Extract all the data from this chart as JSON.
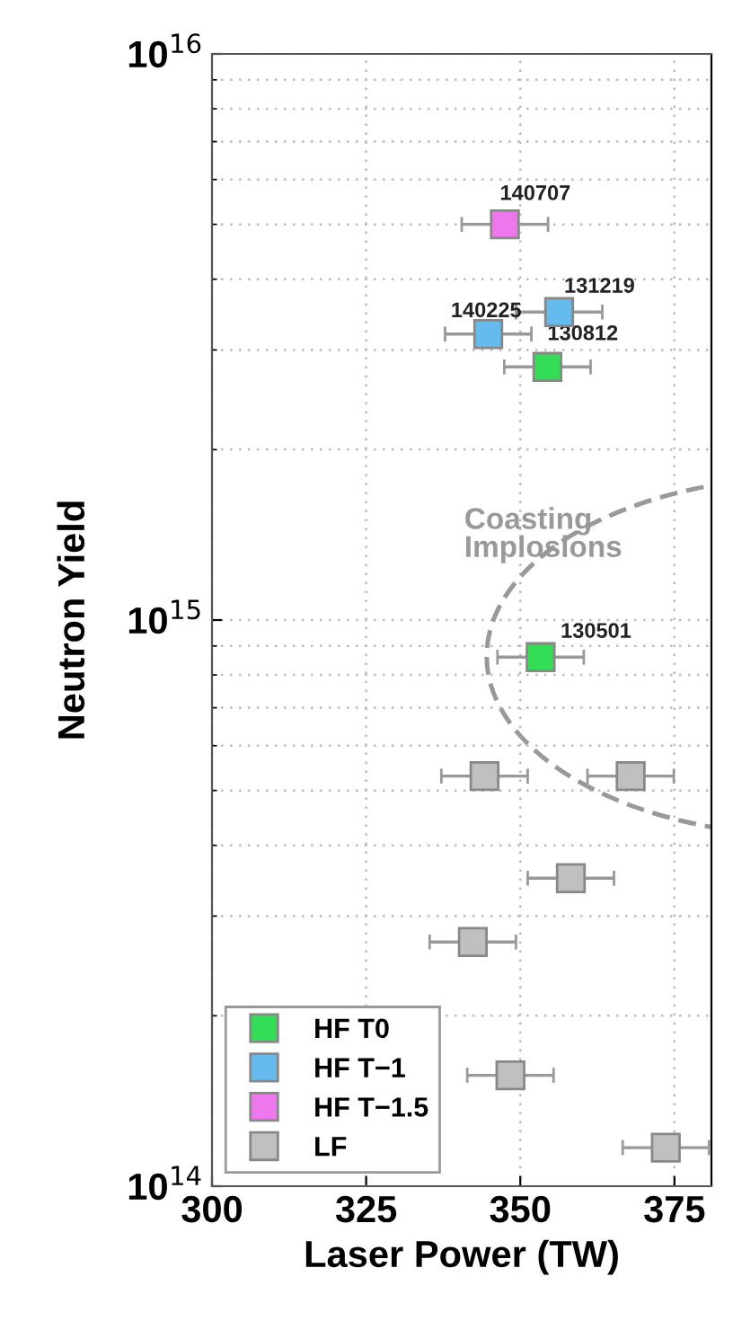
{
  "chart_data": {
    "type": "scatter",
    "xlabel": "Laser Power (TW)",
    "ylabel": "Neutron Yield",
    "log": "y",
    "grid": true,
    "legend": "bottom left",
    "marker": "square",
    "xlim": [
      300,
      381
    ],
    "xticks": [
      300,
      325,
      350,
      375
    ],
    "ylim": [
      100000000000000.0,
      1e+16
    ],
    "yticks": [
      {
        "value": 100000000000000.0,
        "label": "10$^{14}$"
      },
      {
        "value": 1000000000000000.0,
        "label": "10$^{15}$"
      },
      {
        "value": 1e+16,
        "label": "10$^{16}$"
      }
    ],
    "series": [
      {
        "name": "HF T0",
        "color": "#33dd55",
        "x": [
          354.4,
          353.3
        ],
        "values": [
          2800000000000000.0,
          860000000000000.0
        ],
        "xerrors": [
          7,
          7
        ]
      },
      {
        "name": "HF T−1",
        "color": "#66bbee",
        "x": [
          356.3,
          344.8
        ],
        "values": [
          3500000000000000.0,
          3200000000000000.0
        ],
        "xerrors": [
          7,
          7
        ]
      },
      {
        "name": "HF T−1.5",
        "color": "#ee77ee",
        "x": [
          347.5
        ],
        "values": [
          5000000000000000.0
        ],
        "xerrors": [
          7
        ]
      },
      {
        "name": "LF",
        "color": "#c0c0c0",
        "x": [
          344.2,
          367.9,
          358.2,
          342.3,
          348.4,
          373.6
        ],
        "values": [
          530000000000000.0,
          530000000000000.0,
          350000000000000.0,
          270000000000000.0,
          157000000000000.0,
          117000000000000.0
        ],
        "xerrors": [
          7,
          7,
          7,
          7,
          7,
          7
        ]
      }
    ],
    "annotations": [
      {
        "text": "140707",
        "x": 347.5,
        "y": 5000000000000000.0
      },
      {
        "text": "131219",
        "x": 356.3,
        "y": 3500000000000000.0
      },
      {
        "text": "140225",
        "x": 344.8,
        "y": 3200000000000000.0
      },
      {
        "text": "130812",
        "x": 354.4,
        "y": 2800000000000000.0
      },
      {
        "text": "130501",
        "x": 353.3,
        "y": 860000000000000.0
      },
      "Coasting\nImplosions"
    ]
  }
}
